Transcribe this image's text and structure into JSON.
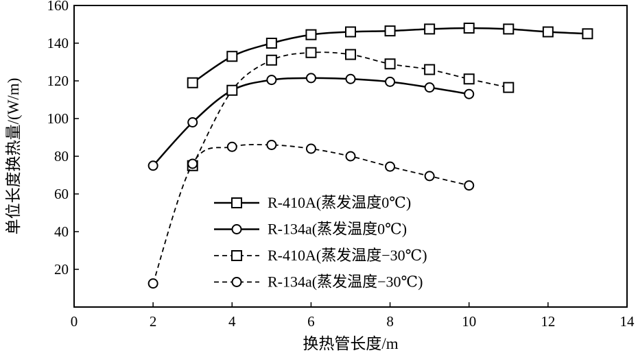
{
  "chart_data": {
    "type": "line",
    "title": "",
    "xlabel": "换热管长度/m",
    "ylabel": "单位长度换热量/(W/m)",
    "xlim": [
      0,
      14
    ],
    "ylim": [
      0,
      160
    ],
    "xticks": [
      0,
      2,
      4,
      6,
      8,
      10,
      12,
      14
    ],
    "yticks": [
      20,
      40,
      60,
      80,
      100,
      120,
      140,
      160
    ],
    "grid": false,
    "legend_position": "lower-center",
    "series": [
      {
        "name": "R-410A(蒸发温度0℃)",
        "marker": "square",
        "line_style": "solid",
        "x": [
          3,
          4,
          5,
          6,
          7,
          8,
          9,
          10,
          11,
          12,
          13
        ],
        "y": [
          119,
          133,
          140,
          144.5,
          146,
          146.5,
          147.5,
          148,
          147.5,
          146,
          145
        ]
      },
      {
        "name": "R-134a(蒸发温度0℃)",
        "marker": "circle",
        "line_style": "solid",
        "x": [
          2,
          3,
          4,
          5,
          6,
          7,
          8,
          9,
          10
        ],
        "y": [
          75,
          98,
          115,
          120.5,
          121.5,
          121,
          119.5,
          116.5,
          113
        ]
      },
      {
        "name": "R-410A(蒸发温度−30℃)",
        "marker": "square",
        "line_style": "dashed",
        "x": [
          3,
          4,
          5,
          6,
          7,
          8,
          9,
          10,
          11
        ],
        "y": [
          75,
          115,
          131,
          135,
          134,
          129,
          126,
          121,
          116.5
        ]
      },
      {
        "name": "R-134a(蒸发温度−30℃)",
        "marker": "circle",
        "line_style": "dashed",
        "x": [
          2,
          3,
          4,
          5,
          6,
          7,
          8,
          9,
          10
        ],
        "y": [
          12.5,
          76,
          85,
          86,
          84,
          80,
          74.5,
          69.5,
          64.5
        ]
      }
    ]
  }
}
